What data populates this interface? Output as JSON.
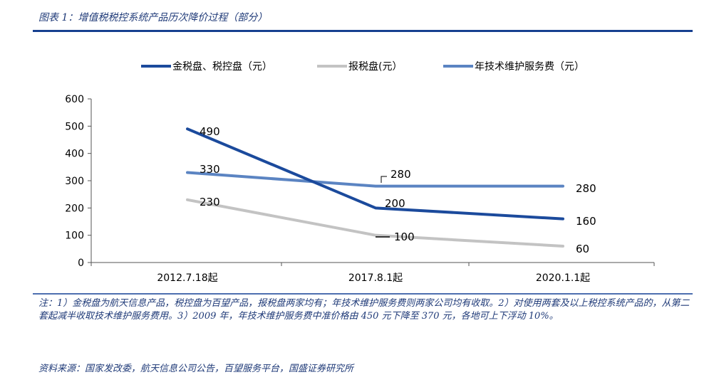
{
  "figure": {
    "title": "图表 1：增值税税控系统产品历次降价过程（部分）",
    "note": "注：1）金税盘为航天信息产品，税控盘为百望产品，报税盘两家均有；年技术维护服务费则两家公司均有收取。2）对使用两套及以上税控系统产品的，从第二套起减半收取技术维护服务费用。3）2009 年，年技术维护服务费中准价格由 450 元下降至 370 元，各地可上下浮动 10%。",
    "source": "资料来源：国家发改委，航天信息公司公告，百望服务平台，国盛证券研究所"
  },
  "chart_data": {
    "type": "line",
    "title": "",
    "xlabel": "",
    "ylabel": "",
    "categories": [
      "2012.7.18起",
      "2017.8.1起",
      "2020.1.1起"
    ],
    "ylim": [
      0,
      600
    ],
    "yticks": [
      0,
      100,
      200,
      300,
      400,
      500,
      600
    ],
    "grid": false,
    "legend_position": "top",
    "series": [
      {
        "name": "金税盘、税控盘（元）",
        "values": [
          490,
          200,
          160
        ],
        "color": "#1b4a9c",
        "width": 4
      },
      {
        "name": "报税盘(元）",
        "values": [
          230,
          100,
          60
        ],
        "color": "#c3c3c3",
        "width": 4
      },
      {
        "name": "年技术维护服务费（元）",
        "values": [
          330,
          280,
          280
        ],
        "color": "#5b84c2",
        "width": 4
      }
    ],
    "data_labels": [
      [
        "490",
        "200",
        "160"
      ],
      [
        "230",
        "100",
        "60"
      ],
      [
        "330",
        "280",
        "280"
      ]
    ]
  }
}
